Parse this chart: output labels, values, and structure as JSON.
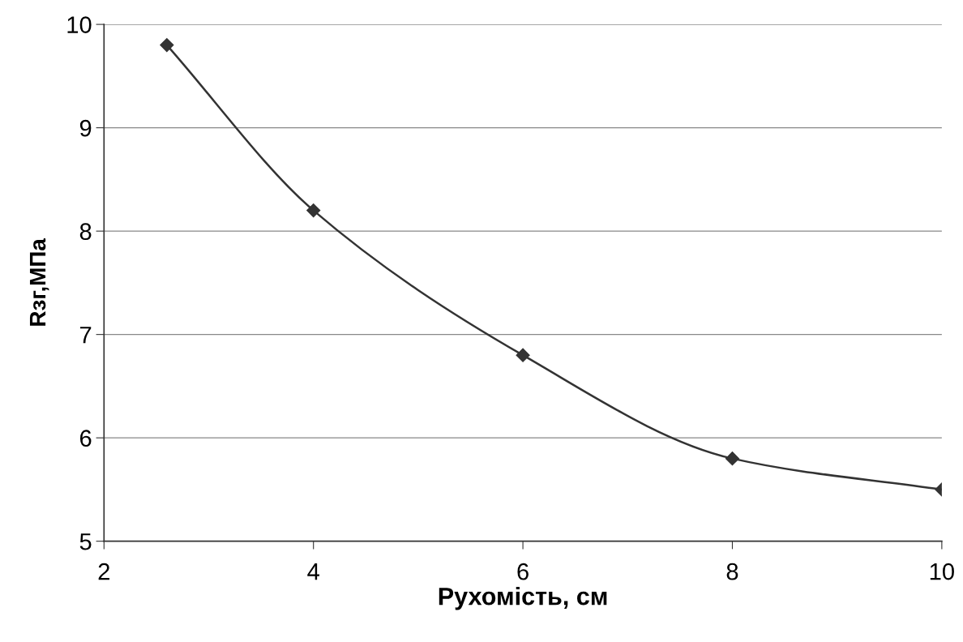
{
  "chart_data": {
    "type": "line",
    "xlabel": "Рухомість, см",
    "ylabel": "Rзг,МПа",
    "x": [
      2.6,
      4,
      6,
      8,
      10
    ],
    "series": [
      {
        "color": "#333333",
        "values": [
          9.8,
          8.2,
          6.8,
          5.8,
          5.5
        ]
      }
    ],
    "xlim": [
      2,
      10
    ],
    "xticks": [
      2,
      4,
      6,
      8,
      10
    ],
    "ylim": [
      5,
      10
    ],
    "yticks": [
      5,
      6,
      7,
      8,
      9,
      10
    ],
    "grid": "y",
    "marker": "diamond",
    "line_style": "solid"
  }
}
